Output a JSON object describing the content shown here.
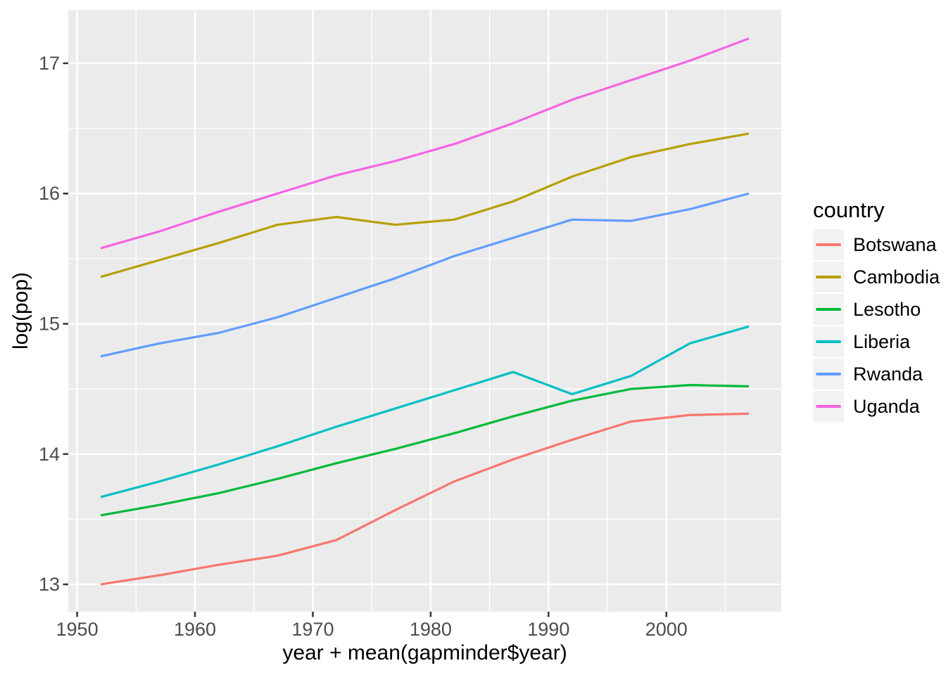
{
  "figure": {
    "background": "#FFFFFF",
    "panel_background": "#EBEBEB",
    "grid_color": "#FFFFFF",
    "tick_mark_color": "#333333",
    "axis_text_color": "#4D4D4D",
    "axis_title_color": "#000000",
    "legend_key_background": "#F2F2F2"
  },
  "chart_data": {
    "type": "line",
    "title": "",
    "xlabel": "year + mean(gapminder$year)",
    "ylabel": "log(pop)",
    "xlim": [
      1949.25,
      2009.75
    ],
    "ylim": [
      12.79,
      17.41
    ],
    "grid": true,
    "x_ticks": [
      {
        "value": 1950,
        "label": "1950"
      },
      {
        "value": 1960,
        "label": "1960"
      },
      {
        "value": 1970,
        "label": "1970"
      },
      {
        "value": 1980,
        "label": "1980"
      },
      {
        "value": 1990,
        "label": "1990"
      },
      {
        "value": 2000,
        "label": "2000"
      }
    ],
    "y_ticks": [
      {
        "value": 13,
        "label": "13"
      },
      {
        "value": 14,
        "label": "14"
      },
      {
        "value": 15,
        "label": "15"
      },
      {
        "value": 16,
        "label": "16"
      },
      {
        "value": 17,
        "label": "17"
      }
    ],
    "x_minor_ticks": [
      1955,
      1965,
      1975,
      1985,
      1995,
      2005
    ],
    "y_minor_ticks": [
      13.5,
      14.5,
      15.5,
      16.5
    ],
    "legend": {
      "title": "country",
      "position": "right"
    },
    "x": [
      1952,
      1957,
      1962,
      1967,
      1972,
      1977,
      1982,
      1987,
      1992,
      1997,
      2002,
      2007
    ],
    "series": [
      {
        "name": "Botswana",
        "color": "#F8766D",
        "values": [
          13.0,
          13.07,
          13.15,
          13.22,
          13.34,
          13.57,
          13.79,
          13.96,
          14.11,
          14.25,
          14.3,
          14.31
        ]
      },
      {
        "name": "Cambodia",
        "color": "#B79F00",
        "values": [
          15.36,
          15.49,
          15.62,
          15.76,
          15.82,
          15.76,
          15.8,
          15.94,
          16.13,
          16.28,
          16.38,
          16.46
        ]
      },
      {
        "name": "Lesotho",
        "color": "#00BA38",
        "values": [
          13.53,
          13.61,
          13.7,
          13.81,
          13.93,
          14.04,
          14.16,
          14.29,
          14.41,
          14.5,
          14.53,
          14.52
        ]
      },
      {
        "name": "Liberia",
        "color": "#00BFC4",
        "values": [
          13.67,
          13.79,
          13.92,
          14.06,
          14.21,
          14.35,
          14.49,
          14.63,
          14.46,
          14.6,
          14.85,
          14.98
        ]
      },
      {
        "name": "Rwanda",
        "color": "#619CFF",
        "values": [
          14.75,
          14.85,
          14.93,
          15.05,
          15.2,
          15.35,
          15.52,
          15.66,
          15.8,
          15.79,
          15.88,
          16.0
        ]
      },
      {
        "name": "Uganda",
        "color": "#F564E3",
        "values": [
          15.58,
          15.71,
          15.86,
          16.0,
          16.14,
          16.25,
          16.38,
          16.54,
          16.72,
          16.87,
          17.02,
          17.19
        ]
      }
    ]
  }
}
